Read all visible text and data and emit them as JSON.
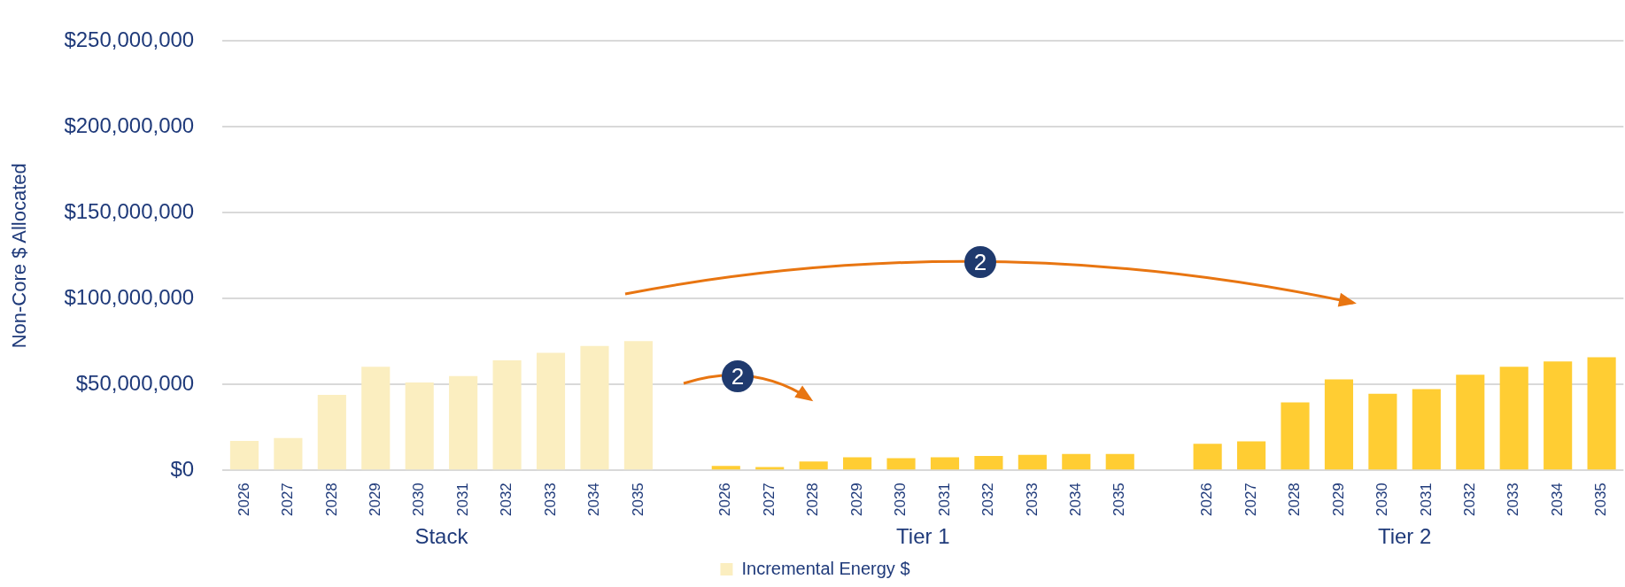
{
  "chart_data": {
    "type": "bar",
    "ylabel": "Non-Core $ Allocated",
    "categories": [
      "2026",
      "2027",
      "2028",
      "2029",
      "2030",
      "2031",
      "2032",
      "2033",
      "2034",
      "2035",
      null,
      "2026",
      "2027",
      "2028",
      "2029",
      "2030",
      "2031",
      "2032",
      "2033",
      "2034",
      "2035",
      null,
      "2026",
      "2027",
      "2028",
      "2029",
      "2030",
      "2031",
      "2032",
      "2033",
      "2034",
      "2035"
    ],
    "series": [
      {
        "name": "Incremental Energy $",
        "color": "#fbeec0",
        "colors": [
          "#fbeec0",
          "#fbeec0",
          "#fbeec0",
          "#fbeec0",
          "#fbeec0",
          "#fbeec0",
          "#fbeec0",
          "#fbeec0",
          "#fbeec0",
          "#fbeec0",
          null,
          "#ffcd33",
          "#ffcd33",
          "#ffcd33",
          "#ffcd33",
          "#ffcd33",
          "#ffcd33",
          "#ffcd33",
          "#ffcd33",
          "#ffcd33",
          "#ffcd33",
          null,
          "#ffcd33",
          "#ffcd33",
          "#ffcd33",
          "#ffcd33",
          "#ffcd33",
          "#ffcd33",
          "#ffcd33",
          "#ffcd33",
          "#ffcd33",
          "#ffcd33"
        ],
        "values": [
          17100000,
          18800000,
          43900000,
          60300000,
          51200000,
          54900000,
          64000000,
          68400000,
          72400000,
          75200000,
          null,
          2500000,
          1900000,
          5100000,
          7600000,
          7000000,
          7600000,
          8300000,
          9000000,
          9500000,
          9500000,
          null,
          15400000,
          16800000,
          39500000,
          53000000,
          44600000,
          47300000,
          55700000,
          60300000,
          63400000,
          65900000
        ]
      }
    ],
    "ylim": [
      0,
      250000000
    ],
    "yticks": [
      {
        "value": 0,
        "label": "$0"
      },
      {
        "value": 50000000,
        "label": "$50,000,000"
      },
      {
        "value": 100000000,
        "label": "$100,000,000"
      },
      {
        "value": 150000000,
        "label": "$150,000,000"
      },
      {
        "value": 200000000,
        "label": "$200,000,000"
      },
      {
        "value": 250000000,
        "label": "$250,000,000"
      }
    ],
    "grid": "y",
    "legend": "bottom",
    "annotations": [
      "Stack",
      "Tier 1",
      "Tier 2",
      "2",
      "2"
    ]
  }
}
